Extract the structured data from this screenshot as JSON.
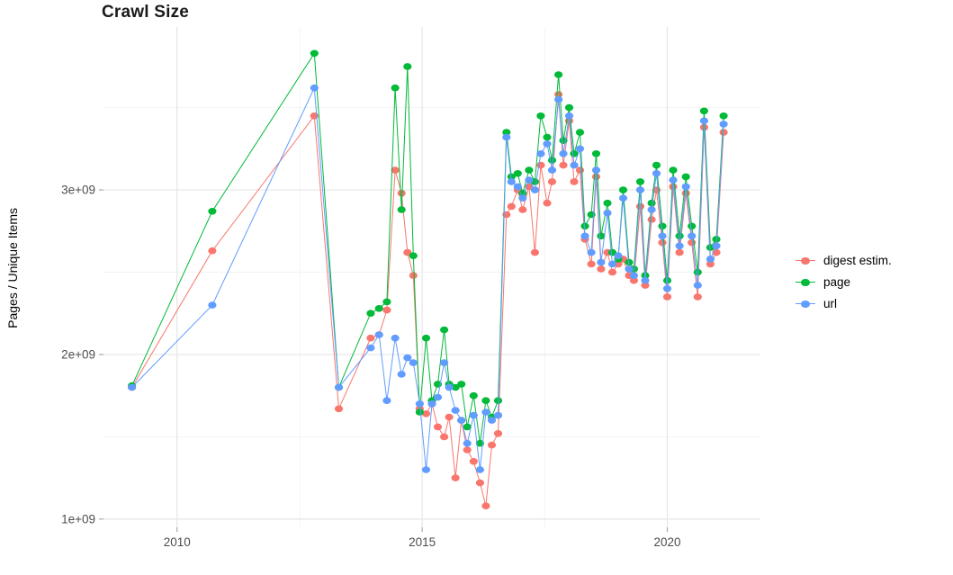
{
  "chart_data": {
    "type": "line",
    "title": "Crawl Size",
    "xlabel": "",
    "ylabel": "Pages / Unique Items",
    "unit": "1e+09",
    "grid": true,
    "legend_position": "right",
    "xlim": [
      2008.5,
      2021.9
    ],
    "ylim": [
      0.95,
      3.99
    ],
    "xticks": [
      {
        "v": 2010,
        "label": "2010"
      },
      {
        "v": 2015,
        "label": "2015"
      },
      {
        "v": 2020,
        "label": "2020"
      }
    ],
    "yticks": [
      {
        "v": 1,
        "label": "1e+09"
      },
      {
        "v": 2,
        "label": "2e+09"
      },
      {
        "v": 3,
        "label": "3e+09"
      }
    ],
    "x": [
      2009.08,
      2010.72,
      2012.8,
      2013.3,
      2013.95,
      2014.12,
      2014.28,
      2014.45,
      2014.58,
      2014.7,
      2014.82,
      2014.95,
      2015.08,
      2015.2,
      2015.32,
      2015.45,
      2015.55,
      2015.68,
      2015.8,
      2015.92,
      2016.05,
      2016.18,
      2016.3,
      2016.42,
      2016.55,
      2016.72,
      2016.82,
      2016.95,
      2017.05,
      2017.18,
      2017.3,
      2017.42,
      2017.55,
      2017.65,
      2017.78,
      2017.88,
      2018.0,
      2018.1,
      2018.22,
      2018.32,
      2018.45,
      2018.55,
      2018.65,
      2018.78,
      2018.88,
      2019.0,
      2019.1,
      2019.22,
      2019.32,
      2019.45,
      2019.55,
      2019.68,
      2019.78,
      2019.9,
      2020.0,
      2020.12,
      2020.25,
      2020.38,
      2020.5,
      2020.62,
      2020.75,
      2020.88,
      2021.0,
      2021.15
    ],
    "series": [
      {
        "name": "digest estim.",
        "color": "#F8766D",
        "values": [
          1.8,
          2.63,
          3.45,
          1.67,
          2.1,
          2.12,
          2.27,
          3.12,
          2.98,
          2.62,
          2.48,
          1.67,
          1.64,
          1.7,
          1.56,
          1.5,
          1.62,
          1.25,
          1.6,
          1.42,
          1.35,
          1.22,
          1.08,
          1.45,
          1.52,
          2.85,
          2.9,
          3.0,
          2.88,
          3.02,
          2.62,
          3.15,
          2.92,
          3.05,
          3.58,
          3.15,
          3.42,
          3.05,
          3.12,
          2.7,
          2.55,
          3.08,
          2.52,
          2.62,
          2.5,
          2.55,
          2.58,
          2.48,
          2.45,
          2.9,
          2.42,
          2.82,
          3.0,
          2.68,
          2.35,
          3.02,
          2.62,
          2.98,
          2.68,
          2.35,
          3.38,
          2.55,
          2.62,
          3.35
        ]
      },
      {
        "name": "page",
        "color": "#00BA38",
        "values": [
          1.81,
          2.87,
          3.83,
          1.8,
          2.25,
          2.28,
          2.32,
          3.62,
          2.88,
          3.75,
          2.6,
          1.65,
          2.1,
          1.72,
          1.82,
          2.15,
          1.82,
          1.8,
          1.82,
          1.56,
          1.75,
          1.46,
          1.72,
          1.62,
          1.72,
          3.35,
          3.08,
          3.1,
          2.98,
          3.12,
          3.05,
          3.45,
          3.32,
          3.18,
          3.7,
          3.3,
          3.5,
          3.22,
          3.35,
          2.78,
          2.85,
          3.22,
          2.72,
          2.92,
          2.62,
          2.58,
          3.0,
          2.56,
          2.52,
          3.05,
          2.48,
          2.92,
          3.15,
          2.78,
          2.45,
          3.12,
          2.72,
          3.08,
          2.78,
          2.5,
          3.48,
          2.65,
          2.7,
          3.45
        ]
      },
      {
        "name": "url",
        "color": "#619CFF",
        "values": [
          1.8,
          2.3,
          3.62,
          1.8,
          2.04,
          2.12,
          1.72,
          2.1,
          1.88,
          1.98,
          1.95,
          1.7,
          1.3,
          1.7,
          1.74,
          1.95,
          1.8,
          1.66,
          1.6,
          1.46,
          1.63,
          1.3,
          1.65,
          1.6,
          1.63,
          3.32,
          3.05,
          3.02,
          2.95,
          3.06,
          3.0,
          3.22,
          3.28,
          3.12,
          3.55,
          3.22,
          3.45,
          3.15,
          3.25,
          2.72,
          2.62,
          3.12,
          2.56,
          2.86,
          2.55,
          2.6,
          2.95,
          2.52,
          2.48,
          3.0,
          2.45,
          2.88,
          3.1,
          2.72,
          2.4,
          3.06,
          2.66,
          3.02,
          2.72,
          2.42,
          3.42,
          2.58,
          2.66,
          3.4
        ]
      }
    ]
  }
}
